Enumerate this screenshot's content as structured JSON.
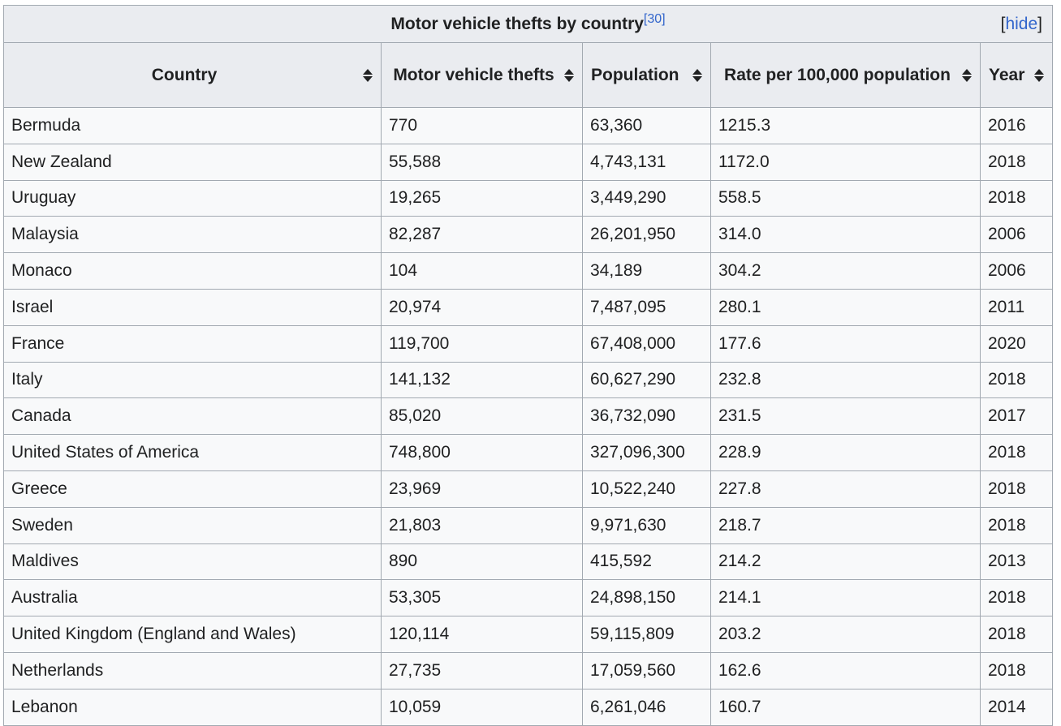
{
  "table": {
    "caption": "Motor vehicle thefts by country",
    "caption_ref": "[30]",
    "hide_open": "[",
    "hide_label": "hide",
    "hide_close": "]",
    "columns": [
      {
        "label": "Country"
      },
      {
        "label": "Motor vehicle thefts"
      },
      {
        "label": "Population"
      },
      {
        "label": "Rate per 100,000 population"
      },
      {
        "label": "Year"
      }
    ],
    "rows": [
      [
        "Bermuda",
        "770",
        "63,360",
        "1215.3",
        "2016"
      ],
      [
        "New Zealand",
        "55,588",
        "4,743,131",
        "1172.0",
        "2018"
      ],
      [
        "Uruguay",
        "19,265",
        "3,449,290",
        "558.5",
        "2018"
      ],
      [
        "Malaysia",
        "82,287",
        "26,201,950",
        "314.0",
        "2006"
      ],
      [
        "Monaco",
        "104",
        "34,189",
        "304.2",
        "2006"
      ],
      [
        "Israel",
        "20,974",
        "7,487,095",
        "280.1",
        "2011"
      ],
      [
        "France",
        "119,700",
        "67,408,000",
        "177.6",
        "2020"
      ],
      [
        "Italy",
        "141,132",
        "60,627,290",
        "232.8",
        "2018"
      ],
      [
        "Canada",
        "85,020",
        "36,732,090",
        "231.5",
        "2017"
      ],
      [
        "United States of America",
        "748,800",
        "327,096,300",
        "228.9",
        "2018"
      ],
      [
        "Greece",
        "23,969",
        "10,522,240",
        "227.8",
        "2018"
      ],
      [
        "Sweden",
        "21,803",
        "9,971,630",
        "218.7",
        "2018"
      ],
      [
        "Maldives",
        "890",
        "415,592",
        "214.2",
        "2013"
      ],
      [
        "Australia",
        "53,305",
        "24,898,150",
        "214.1",
        "2018"
      ],
      [
        "United Kingdom (England and Wales)",
        "120,114",
        "59,115,809",
        "203.2",
        "2018"
      ],
      [
        "Netherlands",
        "27,735",
        "17,059,560",
        "162.6",
        "2018"
      ],
      [
        "Lebanon",
        "10,059",
        "6,261,046",
        "160.7",
        "2014"
      ]
    ]
  }
}
